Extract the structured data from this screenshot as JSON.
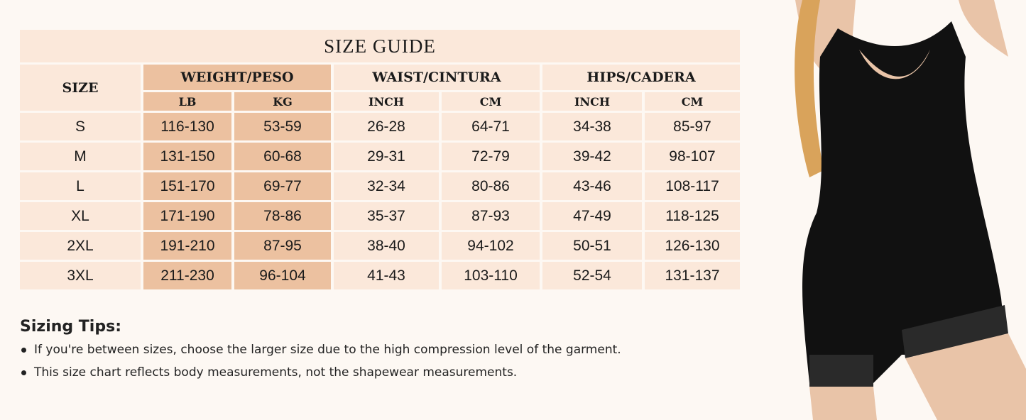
{
  "title": "SIZE GUIDE",
  "headers": {
    "size": "SIZE",
    "weight": "WEIGHT/PESO",
    "waist": "WAIST/CINTURA",
    "hips": "HIPS/CADERA",
    "lb": "LB",
    "kg": "KG",
    "waist_inch": "INCH",
    "waist_cm": "CM",
    "hips_inch": "INCH",
    "hips_cm": "CM"
  },
  "rows": [
    [
      "S",
      "116-130",
      "53-59",
      "26-28",
      "64-71",
      "34-38",
      "85-97"
    ],
    [
      "M",
      "131-150",
      "60-68",
      "29-31",
      "72-79",
      "39-42",
      "98-107"
    ],
    [
      "L",
      "151-170",
      "69-77",
      "32-34",
      "80-86",
      "43-46",
      "108-117"
    ],
    [
      "XL",
      "171-190",
      "78-86",
      "35-37",
      "87-93",
      "47-49",
      "118-125"
    ],
    [
      "2XL",
      "191-210",
      "87-95",
      "38-40",
      "94-102",
      "50-51",
      "126-130"
    ],
    [
      "3XL",
      "211-230",
      "96-104",
      "41-43",
      "103-110",
      "52-54",
      "131-137"
    ]
  ],
  "tips": {
    "heading": "Sizing Tips:",
    "items": [
      "If you're between sizes, choose the larger size due to the high compression level of the garment.",
      "This size chart reflects body measurements, not the shapewear measurements."
    ]
  },
  "colors": {
    "background": "#fdf8f3",
    "cell": "#fbe8da",
    "weight_cell": "#ecc1a0",
    "garment": "#111111"
  }
}
